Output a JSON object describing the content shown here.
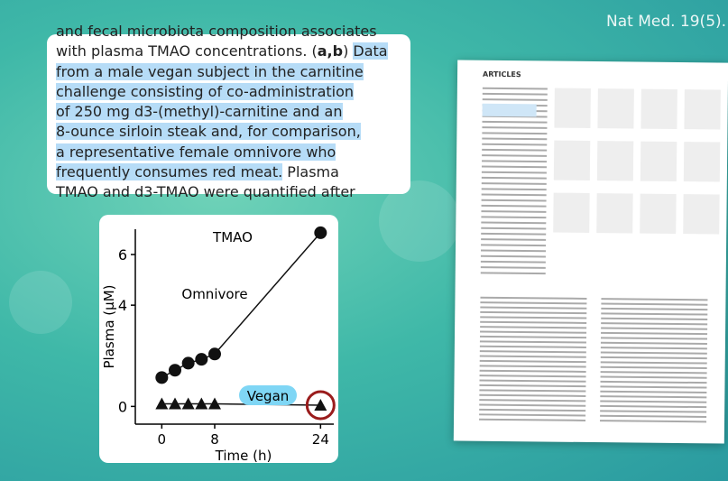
{
  "source_label": "Nat Med. 19(5).",
  "text_card": {
    "lines": [
      [
        {
          "text": "and fecal microbiota composition associates"
        }
      ],
      [
        {
          "text": "with plasma TMAO concentrations. ("
        },
        {
          "text": "a,b",
          "bold": true
        },
        {
          "text": ") "
        },
        {
          "text": "Data",
          "highlight": true
        }
      ],
      [
        {
          "text": "from a male vegan subject in the carnitine",
          "highlight": true
        }
      ],
      [
        {
          "text": "challenge consisting of co-administration",
          "highlight": true
        }
      ],
      [
        {
          "text": "of 250 mg d3-(methyl)-carnitine and an",
          "highlight": true
        }
      ],
      [
        {
          "text": "8-ounce sirloin steak and, for comparison,",
          "highlight": true
        }
      ],
      [
        {
          "text": "a representative female omnivore who",
          "highlight": true
        }
      ],
      [
        {
          "text": "frequently consumes red meat.",
          "highlight": true
        },
        {
          "text": " Plasma"
        }
      ],
      [
        {
          "text": "TMAO and d3-TMAO were quantified after"
        }
      ]
    ]
  },
  "paper": {
    "section": "ARTICLES"
  },
  "chart_data": {
    "type": "line",
    "title": "TMAO",
    "x_label": "Time (h)",
    "y_label": "Plasma (µM)",
    "x": [
      0,
      2,
      4,
      6,
      8,
      24
    ],
    "series": [
      {
        "name": "Omnivore",
        "color": "#111111",
        "marker": "circle",
        "values": [
          1.14,
          1.43,
          1.71,
          1.86,
          2.07,
          6.86
        ]
      },
      {
        "name": "Vegan",
        "color": "#111111",
        "marker": "triangle",
        "values": [
          0.1,
          0.1,
          0.1,
          0.1,
          0.1,
          0.05
        ]
      }
    ],
    "xlim": [
      -4,
      26
    ],
    "ylim": [
      -0.7,
      7
    ],
    "xticks": [
      0,
      8,
      24
    ],
    "yticks": [
      0,
      4,
      6
    ]
  }
}
